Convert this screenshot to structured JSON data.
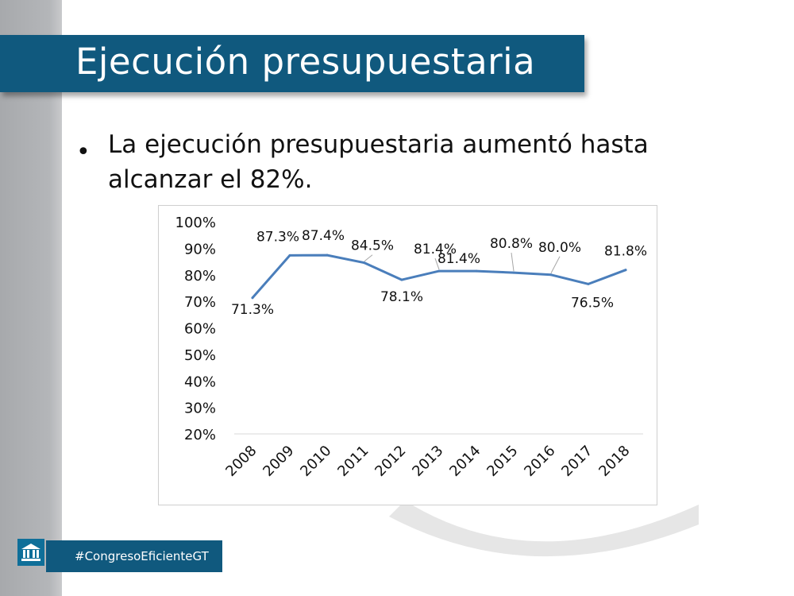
{
  "slide": {
    "title": "Ejecución presupuestaria",
    "bullet_symbol": "•",
    "bullet_text": "La ejecución presupuestaria aumentó hasta alcanzar el 82%.",
    "footer_hashtag": "#CongresoEficienteGT",
    "footer_icon": "congress-building-icon"
  },
  "colors": {
    "banner": "#10597e",
    "line": "#4a7ebb",
    "sidebar": "#b4b6b9"
  },
  "chart_data": {
    "type": "line",
    "title": "",
    "xlabel": "",
    "ylabel": "",
    "categories": [
      "2008",
      "2009",
      "2010",
      "2011",
      "2012",
      "2013",
      "2014",
      "2015",
      "2016",
      "2017",
      "2018"
    ],
    "series": [
      {
        "name": "Ejecución presupuestaria",
        "values": [
          71.3,
          87.3,
          87.4,
          84.5,
          78.1,
          81.4,
          81.4,
          80.8,
          80.0,
          76.5,
          81.8
        ]
      }
    ],
    "data_labels": [
      "71.3%",
      "87.3%",
      "87.4%",
      "84.5%",
      "78.1%",
      "81.4%",
      "81.4%",
      "80.8%",
      "80.0%",
      "76.5%",
      "81.8%"
    ],
    "y_ticks": [
      "100%",
      "90%",
      "80%",
      "70%",
      "60%",
      "50%",
      "40%",
      "30%",
      "20%"
    ],
    "ylim": [
      20,
      100
    ],
    "grid": false,
    "legend": "none"
  }
}
